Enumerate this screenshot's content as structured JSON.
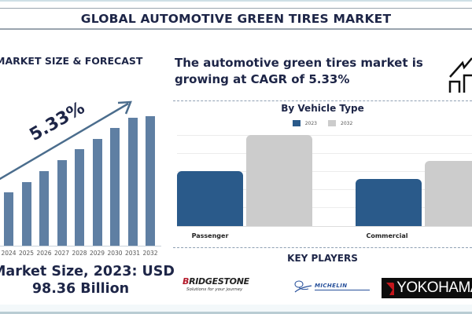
{
  "header": {
    "title": "GLOBAL AUTOMOTIVE GREEN TIRES MARKET"
  },
  "left_panel": {
    "title": "MARKET SIZE & FORECAST",
    "cagr_label": "5.33%",
    "market_size_line1": "Market Size, 2023: USD",
    "market_size_line2": "98.36 Billion"
  },
  "right_panel": {
    "headline_line1": "The automotive green tires market is",
    "headline_line2": "growing at CAGR of 5.33%",
    "icon": "growth-chart-icon",
    "chart_title": "By Vehicle Type",
    "legend": [
      {
        "label": "2023",
        "color": "#2a5a8a"
      },
      {
        "label": "2032",
        "color": "#cccccc"
      }
    ],
    "categories": [
      "Passenger",
      "Commercial"
    ],
    "key_players_title": "KEY PLAYERS",
    "key_players": [
      {
        "name": "BRIDGESTONE",
        "tagline": "Solutions for your journey"
      },
      {
        "name": "MICHELIN"
      },
      {
        "name": "YOKOHAMA"
      }
    ]
  },
  "chart_data": [
    {
      "type": "bar",
      "title": "MARKET SIZE & FORECAST",
      "categories": [
        "2024",
        "2025",
        "2026",
        "2027",
        "2028",
        "2029",
        "2030",
        "2031",
        "2032"
      ],
      "values": [
        68,
        81,
        95,
        109,
        123,
        136,
        150,
        163,
        165
      ],
      "xlabel": "",
      "ylabel": "",
      "annotation": "5.33% (CAGR arrow)",
      "grid": false,
      "color": "#5f7fa3"
    },
    {
      "type": "bar",
      "title": "By Vehicle Type",
      "categories": [
        "Passenger",
        "Commercial"
      ],
      "series": [
        {
          "name": "2023",
          "values": [
            70,
            60
          ],
          "color": "#2a5a8a"
        },
        {
          "name": "2032",
          "values": [
            116,
            83
          ],
          "color": "#cccccc"
        }
      ],
      "legend_position": "top",
      "grid": true,
      "xlabel": "",
      "ylabel": ""
    }
  ]
}
